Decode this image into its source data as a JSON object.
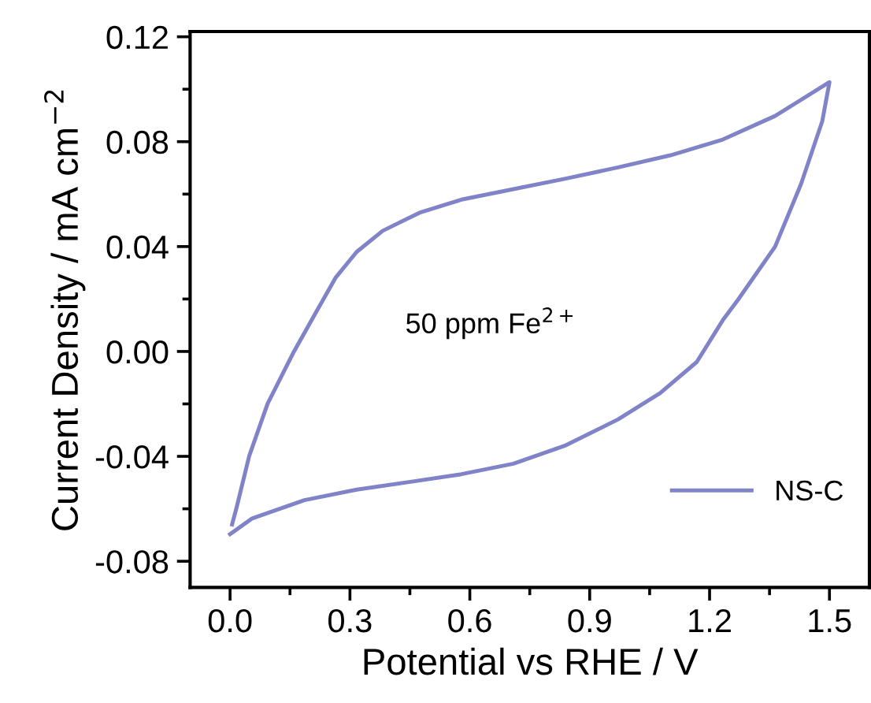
{
  "chart_data": {
    "type": "line",
    "xlabel": "Potential vs RHE / V",
    "ylabel": "Current Density / mA cm$^{−2}$",
    "annotations": [
      "50 ppm Fe$^{2+}$"
    ],
    "xlim": [
      -0.1,
      1.6
    ],
    "ylim": [
      -0.09,
      0.122
    ],
    "xticks": [
      {
        "value": 0,
        "label": "0.0"
      },
      0.3,
      0.6,
      0.9,
      1.2,
      1.5
    ],
    "yticks": [
      {
        "value": -0.08,
        "label": "-0.08"
      },
      {
        "value": -0.04,
        "label": "-0.04"
      },
      {
        "value": 0,
        "label": "0.00"
      },
      0.04,
      0.08,
      0.12
    ],
    "grid": false,
    "legend": "lower right",
    "marker": "none",
    "line_style": "solid",
    "series": [
      {
        "name": "NS-C",
        "color": "#8083c8",
        "x": [
          0,
          0.055,
          0.186,
          0.317,
          0.448,
          0.579,
          0.709,
          0.84,
          0.971,
          1.076,
          1.168,
          1.233,
          1.272,
          1.364,
          1.429,
          1.482,
          1.5,
          1.364,
          1.233,
          1.102,
          0.971,
          0.84,
          0.709,
          0.579,
          0.474,
          0.382,
          0.317,
          0.264,
          0.212,
          0.16,
          0.094,
          0.048,
          0.016,
          0.005
        ],
        "values": [
          -0.0697,
          -0.0637,
          -0.0567,
          -0.0527,
          -0.0498,
          -0.0468,
          -0.0428,
          -0.0358,
          -0.0259,
          -0.0159,
          -0.004,
          0.0119,
          0.0199,
          0.04,
          0.0639,
          0.0878,
          0.1027,
          0.0898,
          0.0808,
          0.0748,
          0.0702,
          0.0659,
          0.0619,
          0.0579,
          0.0529,
          0.046,
          0.038,
          0.0281,
          0.0141,
          0,
          -0.0199,
          -0.0398,
          -0.0597,
          -0.066
        ]
      }
    ]
  }
}
